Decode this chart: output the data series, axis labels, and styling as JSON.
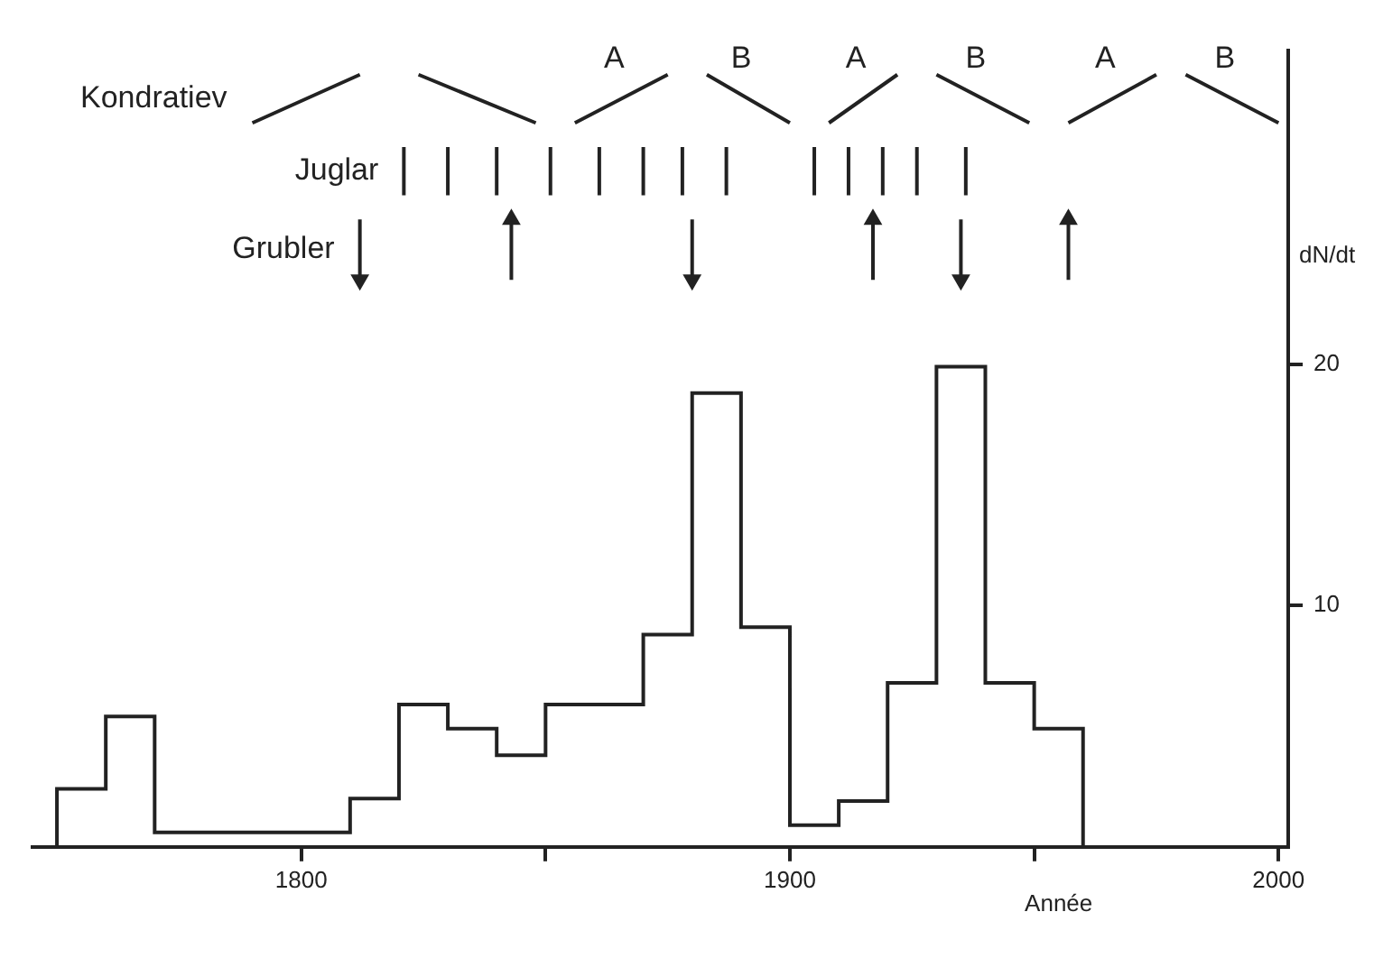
{
  "chart_data": {
    "type": "histogram",
    "xlabel": "Année",
    "ylabel": "dN/dt",
    "bins": [
      1750,
      1760,
      1770,
      1810,
      1820,
      1830,
      1840,
      1850,
      1870,
      1880,
      1890,
      1900,
      1910,
      1920,
      1930,
      1940,
      1950,
      1960
    ],
    "values": [
      2.4,
      5.4,
      0.6,
      2.0,
      5.9,
      4.9,
      3.8,
      5.9,
      8.8,
      18.8,
      9.1,
      0.9,
      1.9,
      6.8,
      19.9,
      6.8,
      4.9
    ],
    "color": "#222222",
    "series": [
      {
        "name": "Kondratiev",
        "type": "line",
        "color": "#222222",
        "marker": "none",
        "x": [
          1790,
          1812,
          null,
          1824,
          1848,
          null,
          1856,
          1875,
          null,
          1883,
          1900,
          null,
          1908,
          1922,
          null,
          1930,
          1949,
          null,
          1957,
          1975,
          null,
          1981,
          2000
        ],
        "values": [
          30,
          32,
          null,
          32,
          30,
          null,
          30,
          32,
          null,
          32,
          30,
          null,
          30,
          32,
          null,
          32,
          30,
          null,
          30,
          32,
          null,
          32,
          30
        ]
      },
      {
        "name": "Juglar",
        "type": "line",
        "color": "#222222",
        "marker": "none",
        "x": [
          1821,
          1821,
          null,
          1830,
          1830,
          null,
          1840,
          1840,
          null,
          1851,
          1851,
          null,
          1861,
          1861,
          null,
          1870,
          1870,
          null,
          1878,
          1878,
          null,
          1887,
          1887,
          null,
          1905,
          1905,
          null,
          1912,
          1912,
          null,
          1919,
          1919,
          null,
          1926,
          1926,
          null,
          1936,
          1936
        ],
        "values": [
          27,
          29,
          null,
          27,
          29,
          null,
          27,
          29,
          null,
          27,
          29,
          null,
          27,
          29,
          null,
          27,
          29,
          null,
          27,
          29,
          null,
          27,
          29,
          null,
          27,
          29,
          null,
          27,
          29,
          null,
          27,
          29,
          null,
          27,
          29,
          null,
          27,
          29
        ]
      },
      {
        "name": "Grubler",
        "type": "line",
        "color": "#222222",
        "marker": "triangle",
        "x": [
          1812,
          1812,
          null,
          1843,
          1843,
          null,
          1880,
          1880,
          null,
          1917,
          1917,
          null,
          1935,
          1935,
          null,
          1957,
          1957
        ],
        "values": [
          26,
          23.5,
          null,
          23.5,
          26,
          null,
          26,
          23.5,
          null,
          23.5,
          26,
          null,
          26,
          23.5,
          null,
          23.5,
          26
        ]
      }
    ],
    "annotations": [
      {
        "text": "A",
        "x": 1865.5,
        "y": 31
      },
      {
        "text": "B",
        "x": 1891.5,
        "y": 31
      },
      {
        "text": "A",
        "x": 1915,
        "y": 31
      },
      {
        "text": "B",
        "x": 1939.5,
        "y": 31
      },
      {
        "text": "A",
        "x": 1966,
        "y": 31
      },
      {
        "text": "B",
        "x": 1990.5,
        "y": 31
      }
    ],
    "xlim": [
      1745,
      2002
    ],
    "ylim": [
      0,
      33
    ],
    "xticks": [
      1800,
      {
        "value": 1850,
        "label": null
      },
      1900,
      {
        "value": 1950,
        "label": null
      },
      2000
    ],
    "yticks": [
      10,
      20
    ],
    "grid": false,
    "legend": false
  }
}
